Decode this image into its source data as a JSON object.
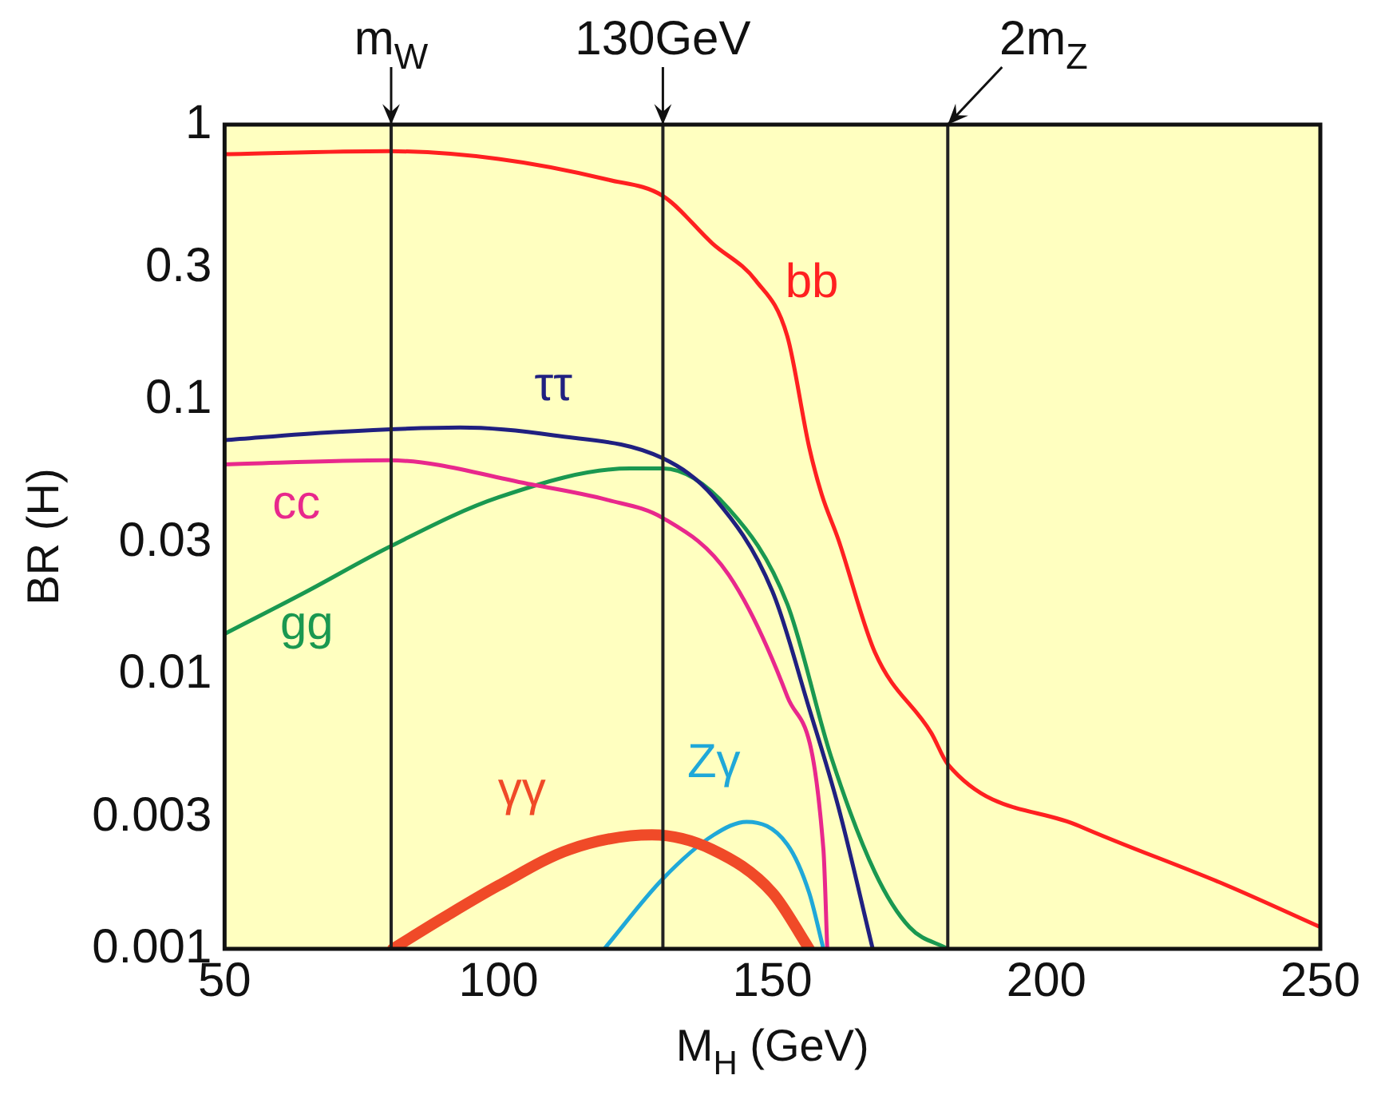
{
  "chart_data": {
    "type": "line",
    "xlabel": "M$_{H}$ (GeV)",
    "ylabel": "BR (H)",
    "log": "y",
    "xlim": [
      50,
      250
    ],
    "xticks": [
      50,
      100,
      150,
      200,
      250
    ],
    "ylim": [
      0.001,
      1
    ],
    "yticks": [
      0.001,
      0.003,
      0.01,
      0.03,
      0.1,
      0.3,
      1
    ],
    "grid": false,
    "legend": false,
    "marker": "none",
    "series": [
      {
        "name": "bb",
        "color": "#ff2020",
        "x": [
          50,
          80,
          100,
          120,
          130,
          139,
          147,
          152.7,
          156.7,
          159,
          162,
          168.7,
          179,
          182,
          206,
          233,
          250
        ],
        "values": [
          0.78,
          0.8,
          0.75,
          0.63,
          0.55,
          0.37,
          0.27,
          0.17,
          0.067,
          0.045,
          0.031,
          0.012,
          0.0061,
          0.0047,
          0.0028,
          0.0017,
          0.0012
        ]
      },
      {
        "name": "ττ",
        "color": "#202080",
        "x": [
          50,
          70,
          93,
          110,
          130,
          139.3,
          150,
          156.7,
          162,
          168.3
        ],
        "values": [
          0.071,
          0.076,
          0.079,
          0.074,
          0.061,
          0.044,
          0.02,
          0.0075,
          0.0033,
          0.001
        ]
      },
      {
        "name": "cc",
        "color": "#e8288c",
        "x": [
          50,
          80,
          106,
          120,
          130,
          142,
          152.7,
          159.3,
          160
        ],
        "values": [
          0.058,
          0.06,
          0.049,
          0.043,
          0.037,
          0.023,
          0.0083,
          0.0023,
          0.001
        ]
      },
      {
        "name": "gg",
        "color": "#1a9850",
        "x": [
          50,
          65,
          80,
          100,
          124,
          130,
          142,
          152.7,
          160.7,
          168.7,
          175,
          182
        ],
        "values": [
          0.014,
          0.02,
          0.029,
          0.044,
          0.056,
          0.056,
          0.04,
          0.018,
          0.005,
          0.0019,
          0.0012,
          0.001
        ]
      },
      {
        "name": "γγ",
        "color": "#f04a28",
        "x": [
          80.7,
          90,
          100,
          113,
          128,
          139,
          150,
          156.7
        ],
        "values": [
          0.001,
          0.0013,
          0.0017,
          0.0023,
          0.0026,
          0.0023,
          0.0016,
          0.001
        ]
      },
      {
        "name": "Zγ",
        "color": "#20a8d8",
        "x": [
          119.3,
          130,
          139.3,
          145.3,
          152.7,
          156.7,
          159.3
        ],
        "values": [
          0.001,
          0.0018,
          0.0026,
          0.0029,
          0.0024,
          0.0016,
          0.001
        ]
      }
    ],
    "ref_lines": [
      {
        "axis": "x",
        "value": 80.4,
        "label": "m$_{W}$"
      },
      {
        "axis": "x",
        "value": 130,
        "label": "130GeV"
      },
      {
        "axis": "x",
        "value": 182,
        "label": "2m$_{Z}$"
      }
    ]
  }
}
